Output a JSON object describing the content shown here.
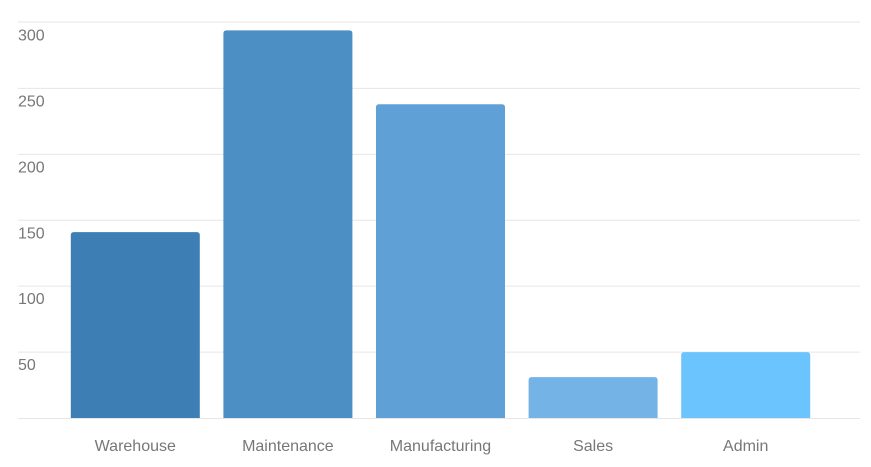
{
  "chart_data": {
    "type": "bar",
    "title": "",
    "xlabel": "",
    "ylabel": "",
    "categories": [
      "Warehouse",
      "Maintenance",
      "Manufacturing",
      "Sales",
      "Admin"
    ],
    "values": [
      141,
      294,
      238,
      31,
      50
    ],
    "colors": [
      "#3d7eb4",
      "#4b8fc5",
      "#5fa1d6",
      "#74b3e6",
      "#6cc4ff"
    ],
    "ylim": [
      0,
      300
    ],
    "y_ticks": [
      50,
      100,
      150,
      200,
      250,
      300
    ],
    "grid": true,
    "legend": "none"
  }
}
